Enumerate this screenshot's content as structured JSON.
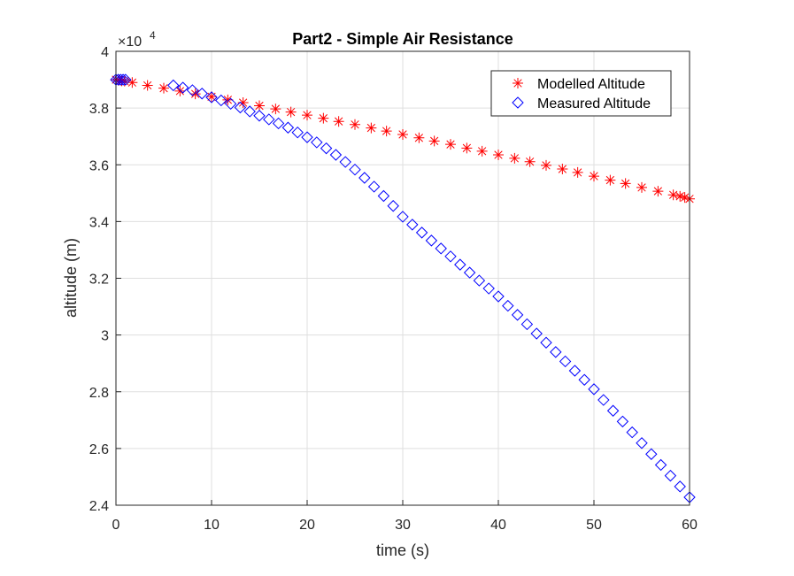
{
  "chart_data": {
    "type": "line",
    "title": "Part2 - Simple Air Resistance",
    "x_label": "time (s)",
    "y_label": "altitude (m)",
    "y_multiplier": {
      "base": "×10",
      "exponent": "4"
    },
    "xlim": [
      0,
      60
    ],
    "xticks": [
      0,
      10,
      20,
      30,
      40,
      50,
      60
    ],
    "ylim": [
      2.4,
      4
    ],
    "yticks": [
      2.4,
      2.6,
      2.8,
      3,
      3.2,
      3.4,
      3.6,
      3.8,
      4
    ],
    "grid": true,
    "legend": "upper right",
    "series": [
      {
        "name": "Modelled Altitude",
        "color": "#ff0000",
        "marker": "asterisk",
        "x": [
          0,
          0.3,
          0.6,
          0.9,
          1.7,
          3.3,
          5,
          6.7,
          8.3,
          10,
          11.7,
          13.3,
          15,
          16.7,
          18.3,
          20,
          21.7,
          23.3,
          25,
          26.7,
          28.3,
          30,
          31.7,
          33.3,
          35,
          36.7,
          38.3,
          40,
          41.7,
          43.3,
          45,
          46.7,
          48.3,
          50,
          51.7,
          53.3,
          55,
          56.7,
          58.3,
          59,
          59.5,
          60
        ],
        "values": [
          3.9,
          3.898,
          3.896,
          3.895,
          3.89,
          3.88,
          3.87,
          3.86,
          3.85,
          3.84,
          3.829,
          3.819,
          3.808,
          3.797,
          3.786,
          3.775,
          3.764,
          3.753,
          3.742,
          3.73,
          3.719,
          3.707,
          3.695,
          3.684,
          3.672,
          3.659,
          3.648,
          3.635,
          3.623,
          3.611,
          3.598,
          3.585,
          3.573,
          3.56,
          3.546,
          3.534,
          3.52,
          3.507,
          3.494,
          3.489,
          3.485,
          3.48
        ]
      },
      {
        "name": "Measured Altitude",
        "color": "#0000ff",
        "marker": "diamond",
        "x": [
          0,
          0.25,
          0.5,
          0.75,
          1,
          6,
          7,
          8,
          9,
          10,
          11,
          12,
          13,
          14,
          15,
          16,
          17,
          18,
          19,
          20,
          21,
          22,
          23,
          24,
          25,
          26,
          27,
          28,
          29,
          30,
          31,
          32,
          33,
          34,
          35,
          36,
          37,
          38,
          39,
          40,
          41,
          42,
          43,
          44,
          45,
          46,
          47,
          48,
          49,
          50,
          51,
          52,
          53,
          54,
          55,
          56,
          57,
          58,
          59,
          60
        ],
        "values": [
          3.9,
          3.9,
          3.9,
          3.9,
          3.9,
          3.88,
          3.872,
          3.863,
          3.851,
          3.838,
          3.827,
          3.815,
          3.802,
          3.788,
          3.773,
          3.76,
          3.746,
          3.731,
          3.714,
          3.697,
          3.679,
          3.658,
          3.635,
          3.61,
          3.583,
          3.554,
          3.523,
          3.49,
          3.455,
          3.417,
          3.389,
          3.361,
          3.333,
          3.305,
          3.277,
          3.248,
          3.22,
          3.192,
          3.164,
          3.136,
          3.103,
          3.071,
          3.038,
          3.005,
          2.973,
          2.94,
          2.907,
          2.874,
          2.842,
          2.809,
          2.771,
          2.733,
          2.695,
          2.657,
          2.619,
          2.58,
          2.542,
          2.504,
          2.466,
          2.428
        ]
      }
    ]
  }
}
